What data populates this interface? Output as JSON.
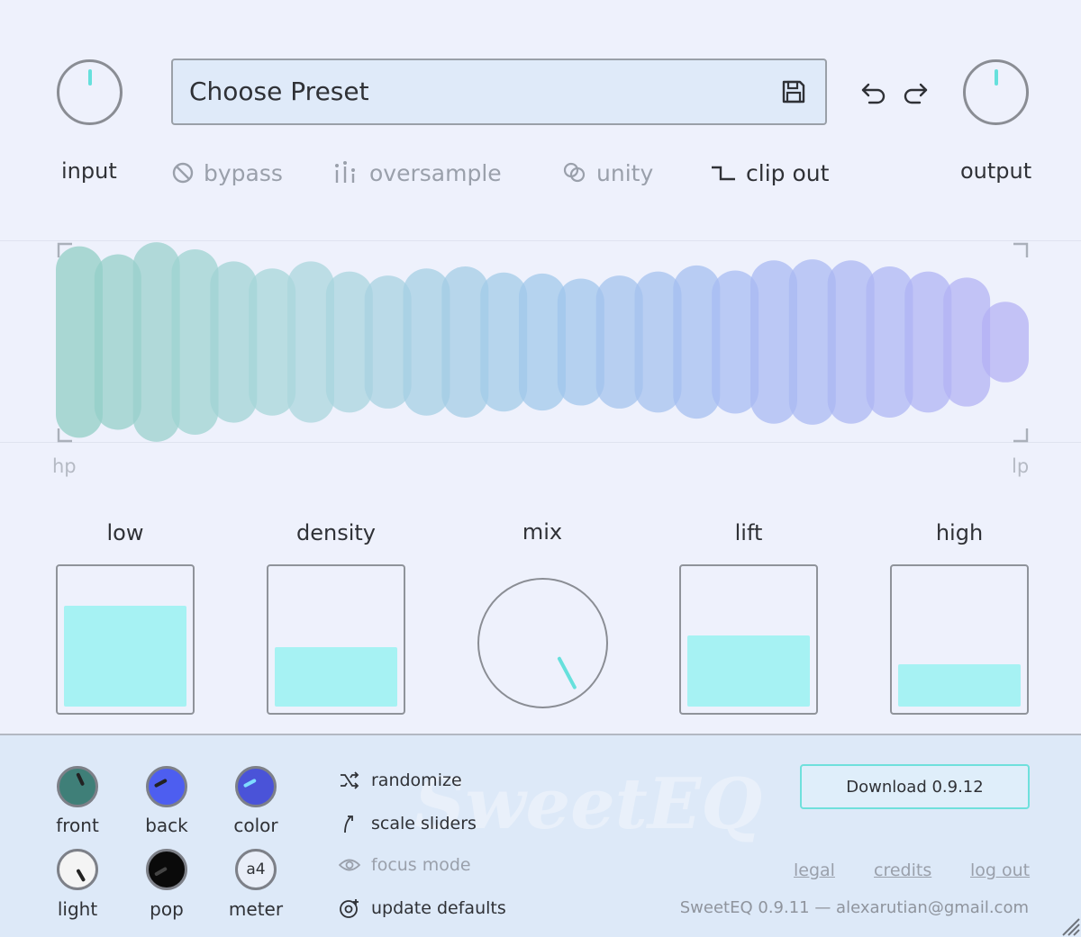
{
  "header": {
    "preset_label": "Choose Preset",
    "input_label": "input",
    "output_label": "output"
  },
  "toggles": {
    "bypass": "bypass",
    "oversample": "oversample",
    "unity": "unity",
    "clip_out": "clip out"
  },
  "eq": {
    "hp_label": "hp",
    "lp_label": "lp",
    "band_levels": [
      0.95,
      0.87,
      0.99,
      0.92,
      0.8,
      0.73,
      0.8,
      0.7,
      0.66,
      0.73,
      0.75,
      0.69,
      0.68,
      0.63,
      0.66,
      0.7,
      0.76,
      0.71,
      0.81,
      0.82,
      0.81,
      0.75,
      0.7,
      0.64,
      0.4
    ],
    "colors": [
      "#8fcdc4",
      "#a9d6dc",
      "#9fc7ea",
      "#a7b9f3",
      "#b3b0f4"
    ]
  },
  "sliders": {
    "low": {
      "label": "low",
      "level": 0.74
    },
    "density": {
      "label": "density",
      "level": 0.44
    },
    "mix": {
      "label": "mix"
    },
    "lift": {
      "label": "lift",
      "level": 0.52
    },
    "high": {
      "label": "high",
      "level": 0.31
    }
  },
  "appearance": {
    "front": "front",
    "back": "back",
    "color": "color",
    "light": "light",
    "pop": "pop",
    "meter": "meter",
    "meter_value": "a4",
    "swatch_colors": {
      "front": "#3f7f78",
      "back": "#4d5ef0",
      "color": "#4a53d8",
      "light": "#f4f4f4",
      "pop": "#0a0a0a",
      "meter": "#e9eef8"
    }
  },
  "menu": {
    "randomize": "randomize",
    "scale_sliders": "scale sliders",
    "focus_mode": "focus mode",
    "update_defaults": "update defaults"
  },
  "footer": {
    "download_label": "Download 0.9.12",
    "legal": "legal",
    "credits": "credits",
    "log_out": "log out",
    "version_text": "SweetEQ 0.9.11 — alexarutian@gmail.com"
  }
}
